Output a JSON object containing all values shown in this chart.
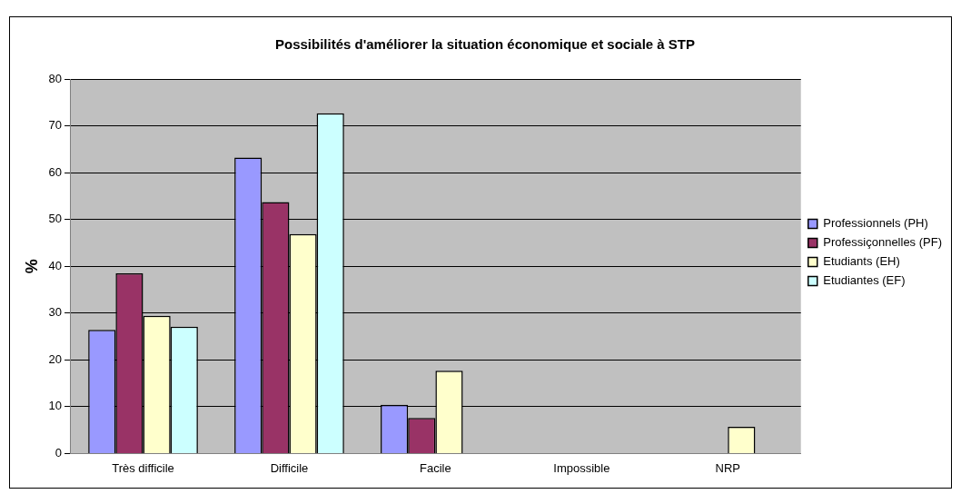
{
  "chart_data": {
    "type": "bar",
    "title": "Possibilités d'améliorer la situation économique et sociale à STP",
    "ylabel": "%",
    "categories": [
      "Très difficile",
      "Difficile",
      "Facile",
      "Impossible",
      "NRP"
    ],
    "series": [
      {
        "name": "Professionnels (PH)",
        "color": "#9999ff",
        "values": [
          26.4,
          63.2,
          10.4,
          0,
          0
        ]
      },
      {
        "name": "Professiçonnelles (PF)",
        "color": "#993366",
        "values": [
          38.5,
          53.7,
          7.6,
          0,
          0
        ]
      },
      {
        "name": "Etudiants (EH)",
        "color": "#ffffcc",
        "values": [
          29.4,
          46.9,
          17.7,
          0,
          5.7
        ]
      },
      {
        "name": "Etudiantes (EF)",
        "color": "#ccffff",
        "values": [
          27.1,
          72.7,
          0,
          0,
          0
        ]
      }
    ],
    "ylim": [
      0,
      80
    ],
    "yticks": [
      0,
      10,
      20,
      30,
      40,
      50,
      60,
      70,
      80
    ],
    "grid": "y",
    "legend": "right"
  }
}
